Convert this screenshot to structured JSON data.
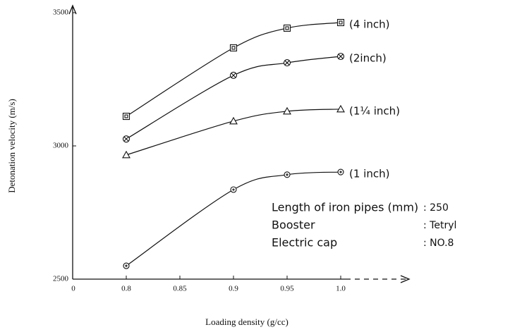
{
  "chart_data": {
    "type": "line",
    "y_label": "Detonation velocity (m/s)",
    "x_label": "Loading density (g/cc)",
    "origin_label": "0",
    "x": [
      0.8,
      0.9,
      0.95,
      1.0
    ],
    "xlim": [
      0.75,
      1.05
    ],
    "xticks": [
      0.8,
      0.85,
      0.9,
      0.95,
      {
        "value": 1.0,
        "label": "1.0"
      }
    ],
    "ylim": [
      2500,
      3500
    ],
    "yticks": [
      2500,
      3000,
      3500
    ],
    "series": [
      {
        "name": "(4 inch)",
        "marker": "square",
        "color": "#111111",
        "values": [
          3111,
          3368,
          3442,
          3463
        ]
      },
      {
        "name": "(2inch)",
        "marker": "circle-x",
        "color": "#111111",
        "values": [
          3026,
          3265,
          3312,
          3336
        ]
      },
      {
        "name": "(1¼ inch)",
        "marker": "triangle",
        "color": "#111111",
        "values": [
          2966,
          3093,
          3130,
          3138
        ]
      },
      {
        "name": "(1 inch)",
        "marker": "circle-dot",
        "color": "#111111",
        "values": [
          2550,
          2836,
          2892,
          2902
        ]
      }
    ],
    "annotation": [
      [
        "Length of iron pipes (mm)",
        ": 250"
      ],
      [
        "Booster",
        ": Tetryl"
      ],
      [
        "Electric cap",
        ": NO.8"
      ]
    ]
  }
}
